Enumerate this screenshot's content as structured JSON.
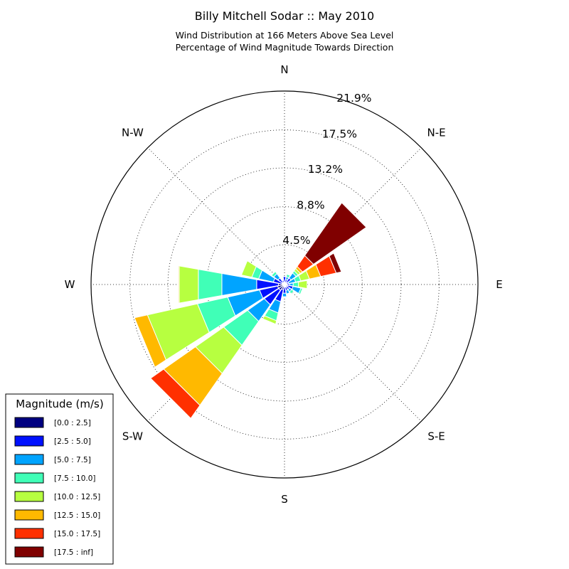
{
  "chart_data": {
    "type": "windrose",
    "title": "Billy Mitchell Sodar :: May 2010",
    "subtitle_lines": [
      "Wind Distribution at 166 Meters Above Sea Level",
      "Percentage of Wind Magnitude Towards Direction"
    ],
    "direction_labels": [
      "N",
      "N-E",
      "E",
      "S-E",
      "S",
      "S-W",
      "W",
      "N-W"
    ],
    "ring_labels": [
      "4.5%",
      "8.8%",
      "13.2%",
      "17.5%",
      "21.9%"
    ],
    "ring_values": [
      4.5,
      8.8,
      13.2,
      17.5,
      21.9
    ],
    "rmax": 21.9,
    "grid": true,
    "legend": {
      "title": "Magnitude (m/s)",
      "placement": "lower-left",
      "bins": [
        "[0.0 : 2.5]",
        "[2.5 : 5.0]",
        "[5.0 : 7.5]",
        "[7.5 : 10.0]",
        "[10.0 : 12.5]",
        "[12.5 : 15.0]",
        "[15.0 : 17.5]",
        "[17.5 : inf]"
      ],
      "colors": [
        "#000080",
        "#0010ff",
        "#00a4ff",
        "#40ffb7",
        "#b7ff40",
        "#ffb900",
        "#ff3000",
        "#800000"
      ]
    },
    "sectors": [
      {
        "direction_deg": 0,
        "values": [
          0.3,
          0.6,
          0,
          0,
          0,
          0,
          0,
          0
        ]
      },
      {
        "direction_deg": 22.5,
        "values": [
          0.2,
          0.4,
          0.3,
          0.3,
          0,
          0,
          0,
          0
        ]
      },
      {
        "direction_deg": 45,
        "values": [
          0.3,
          0.6,
          0.7,
          0.3,
          0.3,
          0.3,
          1.5,
          7.3
        ]
      },
      {
        "direction_deg": 67.5,
        "values": [
          0.2,
          0.3,
          0.8,
          0.6,
          1.0,
          1.3,
          1.8,
          0.6
        ]
      },
      {
        "direction_deg": 90,
        "values": [
          0.3,
          0.3,
          0.4,
          0.6,
          1.0,
          0,
          0,
          0
        ]
      },
      {
        "direction_deg": 112.5,
        "values": [
          0.4,
          0.6,
          0.9,
          0.2,
          0,
          0,
          0,
          0
        ]
      },
      {
        "direction_deg": 135,
        "values": [
          0.3,
          0.4,
          0.3,
          0.3,
          0,
          0,
          0,
          0
        ]
      },
      {
        "direction_deg": 157.5,
        "values": [
          0.3,
          0.4,
          0.4,
          0,
          0,
          0,
          0,
          0
        ]
      },
      {
        "direction_deg": 180,
        "values": [
          0.3,
          0.7,
          0.4,
          0,
          0,
          0,
          0,
          0
        ]
      },
      {
        "direction_deg": 202.5,
        "values": [
          0.6,
          1.4,
          1.3,
          0.9,
          0.4,
          0,
          0,
          0
        ]
      },
      {
        "direction_deg": 225,
        "values": [
          0.8,
          2.0,
          2.3,
          3.3,
          3.9,
          4.4,
          1.8,
          0
        ]
      },
      {
        "direction_deg": 247.5,
        "values": [
          0.8,
          2.1,
          3.7,
          3.5,
          5.8,
          1.5,
          0,
          0
        ]
      },
      {
        "direction_deg": 270,
        "values": [
          0.7,
          2.5,
          4.0,
          2.7,
          2.2,
          0.1,
          0,
          0
        ]
      },
      {
        "direction_deg": 292.5,
        "values": [
          0.3,
          1.0,
          1.7,
          0.8,
          1.2,
          0,
          0,
          0
        ]
      },
      {
        "direction_deg": 315,
        "values": [
          0.3,
          0.6,
          0.6,
          0.3,
          0,
          0,
          0,
          0
        ]
      },
      {
        "direction_deg": 337.5,
        "values": [
          0.2,
          0.3,
          0,
          0,
          0,
          0,
          0,
          0
        ]
      }
    ]
  }
}
